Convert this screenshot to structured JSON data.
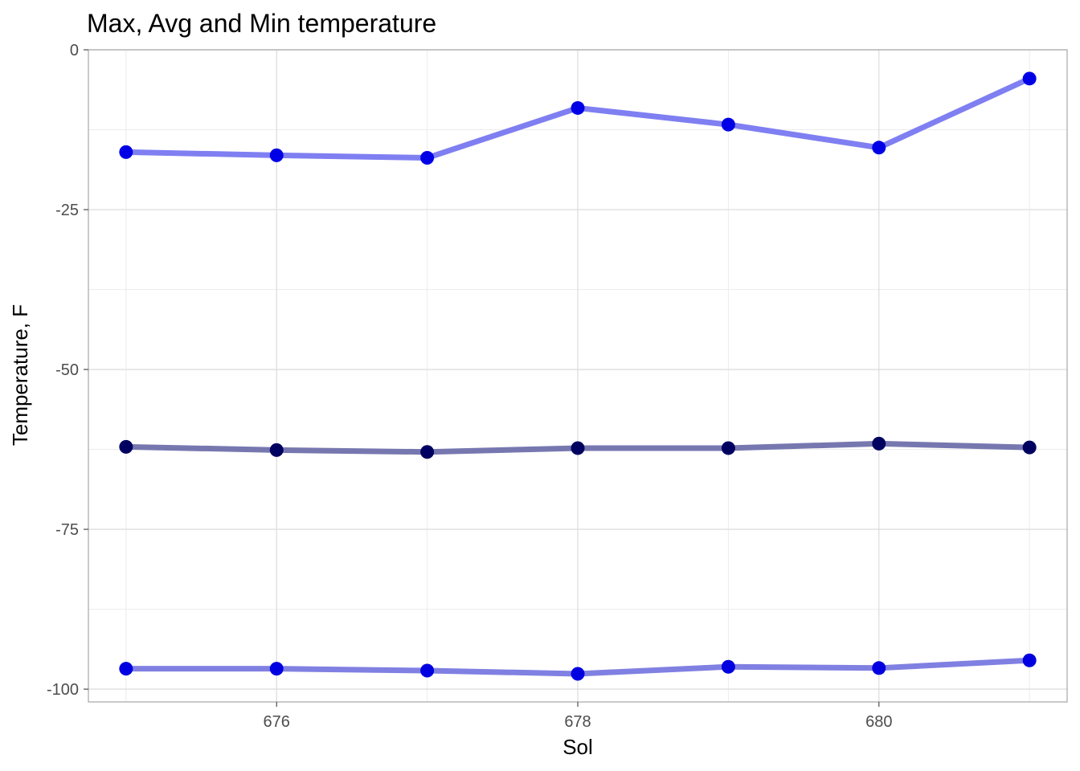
{
  "chart_data": {
    "type": "line",
    "title": "Max, Avg and Min temperature",
    "xlabel": "Sol",
    "ylabel": "Temperature, F",
    "x": [
      675,
      676,
      677,
      678,
      679,
      680,
      681
    ],
    "xlim": [
      674.75,
      681.25
    ],
    "ylim": [
      -102,
      0
    ],
    "x_ticks": [
      676,
      678,
      680
    ],
    "x_tick_labels": [
      "676",
      "678",
      "680"
    ],
    "x_minor_ticks": [
      675,
      677,
      679,
      681
    ],
    "y_ticks": [
      0,
      -25,
      -50,
      -75,
      -100
    ],
    "y_tick_labels": [
      "0",
      "-25",
      "-50",
      "-75",
      "-100"
    ],
    "y_minor_ticks": [
      -12.5,
      -37.5,
      -62.5,
      -87.5
    ],
    "grid": true,
    "legend": "none",
    "series": [
      {
        "key": "max",
        "values": [
          -16.0,
          -16.5,
          -16.9,
          -9.1,
          -11.7,
          -15.3,
          -4.5
        ],
        "line_color": "#7f7ff2",
        "point_color": "#0000e6"
      },
      {
        "key": "avg",
        "values": [
          -62.1,
          -62.6,
          -62.9,
          -62.3,
          -62.3,
          -61.6,
          -62.2
        ],
        "line_color": "#7777b0",
        "point_color": "#000060"
      },
      {
        "key": "min",
        "values": [
          -96.8,
          -96.8,
          -97.1,
          -97.6,
          -96.5,
          -96.7,
          -95.5
        ],
        "line_color": "#8080e2",
        "point_color": "#0000e0"
      }
    ]
  }
}
